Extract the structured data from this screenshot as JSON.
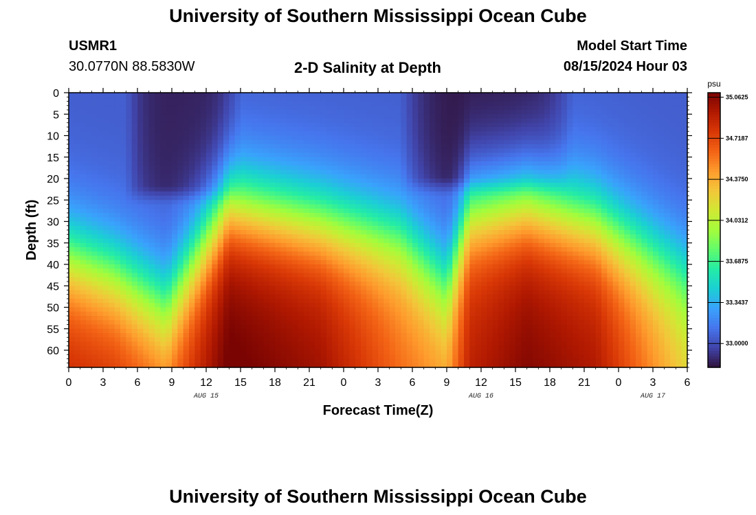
{
  "header": {
    "title": "University of Southern Mississippi Ocean Cube",
    "station_id": "USMR1",
    "coordinates": "30.0770N  88.5830W",
    "plot_title": "2-D Salinity at Depth",
    "start_label": "Model Start Time",
    "start_value": "08/15/2024 Hour 03"
  },
  "footer": {
    "title": "University of Southern Mississippi Ocean Cube"
  },
  "chart_data": {
    "type": "heatmap",
    "title": "2-D Salinity at Depth",
    "xlabel": "Forecast Time(Z)",
    "ylabel": "Depth (ft)",
    "x_ticks": [
      "0",
      "3",
      "6",
      "9",
      "12",
      "15",
      "18",
      "21",
      "0",
      "3",
      "6",
      "9",
      "12",
      "15",
      "18",
      "21",
      "0",
      "3",
      "6"
    ],
    "x_range_hours": [
      0,
      54
    ],
    "date_labels": [
      {
        "label": "AUG 15",
        "hour": 12
      },
      {
        "label": "AUG 16",
        "hour": 36
      },
      {
        "label": "AUG 17",
        "hour": 51
      }
    ],
    "y_ticks": [
      0,
      5,
      10,
      15,
      20,
      25,
      30,
      35,
      40,
      45,
      50,
      55,
      60
    ],
    "y_range_ft": [
      0,
      64
    ],
    "y_inverted": true,
    "colorbar": {
      "unit": "psu",
      "min": 32.8,
      "max": 35.1,
      "labels": [
        "35.0625",
        "34.7187",
        "34.3750",
        "34.0312",
        "33.6875",
        "33.3437",
        "33.0000"
      ],
      "colors": [
        "#30123b",
        "#4145ab",
        "#4675ed",
        "#39a2fc",
        "#1bcfd4",
        "#24eca6",
        "#61fc6c",
        "#a4fc3b",
        "#d1e834",
        "#f3c63a",
        "#fe9b2d",
        "#f36315",
        "#d93806",
        "#b11901",
        "#7a0402"
      ]
    },
    "cell_grid": {
      "time_step_hours": 0.5,
      "depth_step_ft": 1
    },
    "depth_profile_points": [
      {
        "hour": 0,
        "halocline_ft": 38,
        "deep_value": 34.75
      },
      {
        "hour": 4,
        "halocline_ft": 42,
        "deep_value": 34.7
      },
      {
        "hour": 8.5,
        "halocline_ft": 49,
        "deep_value": 34.5
      },
      {
        "hour": 14,
        "halocline_ft": 26,
        "deep_value": 35.05
      },
      {
        "hour": 22,
        "halocline_ft": 30,
        "deep_value": 34.9
      },
      {
        "hour": 29,
        "halocline_ft": 34,
        "deep_value": 34.5
      },
      {
        "hour": 33,
        "halocline_ft": 44,
        "deep_value": 34.35
      },
      {
        "hour": 35,
        "halocline_ft": 28,
        "deep_value": 34.8
      },
      {
        "hour": 40,
        "halocline_ft": 26,
        "deep_value": 34.98
      },
      {
        "hour": 46,
        "halocline_ft": 30,
        "deep_value": 34.85
      },
      {
        "hour": 50,
        "halocline_ft": 36,
        "deep_value": 34.5
      },
      {
        "hour": 54,
        "halocline_ft": 42,
        "deep_value": 34.15
      }
    ],
    "surface_fresh_lens": [
      {
        "hour_start": 7,
        "hour_end": 13,
        "depth_ft": 22,
        "value": 32.85
      },
      {
        "hour_start": 31,
        "hour_end": 42,
        "depth_ft": 20,
        "value": 32.82
      }
    ],
    "surface_baseline": 33.05
  }
}
